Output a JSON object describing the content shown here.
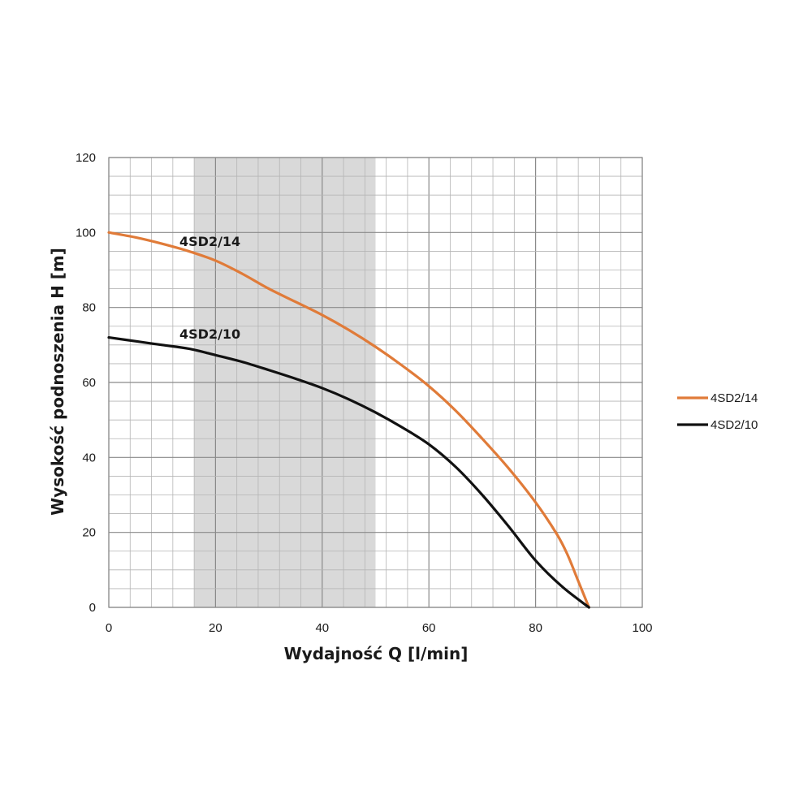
{
  "chart_data": {
    "type": "line",
    "xlabel": "Wydajność Q [l/min]",
    "ylabel": "Wysokość podnoszenia H [m]",
    "xlim": [
      0,
      100
    ],
    "ylim": [
      0,
      120
    ],
    "x_ticks": [
      0,
      20,
      40,
      60,
      80,
      100
    ],
    "y_ticks": [
      0,
      20,
      40,
      60,
      80,
      100,
      120
    ],
    "x_minor_step": 4,
    "y_minor_step": 5,
    "grid": true,
    "legend_position": "right",
    "shaded_range": {
      "x": [
        16,
        50
      ],
      "color": "#d9d9d9"
    },
    "series": [
      {
        "name": "4SD2/14",
        "color": "#e07b39",
        "curve_label": "4SD2/14",
        "points": [
          [
            0,
            100
          ],
          [
            5,
            98.7
          ],
          [
            10,
            97
          ],
          [
            15,
            95
          ],
          [
            20,
            92.5
          ],
          [
            25,
            89
          ],
          [
            30,
            85
          ],
          [
            35,
            81.5
          ],
          [
            40,
            78
          ],
          [
            45,
            74
          ],
          [
            50,
            69.5
          ],
          [
            55,
            64.5
          ],
          [
            60,
            59
          ],
          [
            65,
            52.5
          ],
          [
            70,
            45
          ],
          [
            75,
            37
          ],
          [
            80,
            28
          ],
          [
            84,
            19.5
          ],
          [
            86,
            14
          ],
          [
            88,
            7
          ],
          [
            90,
            0
          ]
        ]
      },
      {
        "name": "4SD2/10",
        "color": "#111111",
        "curve_label": "4SD2/10",
        "points": [
          [
            0,
            72
          ],
          [
            5,
            71
          ],
          [
            10,
            70
          ],
          [
            15,
            69
          ],
          [
            20,
            67.3
          ],
          [
            25,
            65.5
          ],
          [
            30,
            63.3
          ],
          [
            35,
            61
          ],
          [
            40,
            58.5
          ],
          [
            45,
            55.5
          ],
          [
            50,
            52
          ],
          [
            55,
            48
          ],
          [
            60,
            43.5
          ],
          [
            65,
            37.5
          ],
          [
            70,
            30
          ],
          [
            75,
            21.5
          ],
          [
            80,
            12.5
          ],
          [
            85,
            5.5
          ],
          [
            90,
            0
          ]
        ]
      }
    ]
  }
}
